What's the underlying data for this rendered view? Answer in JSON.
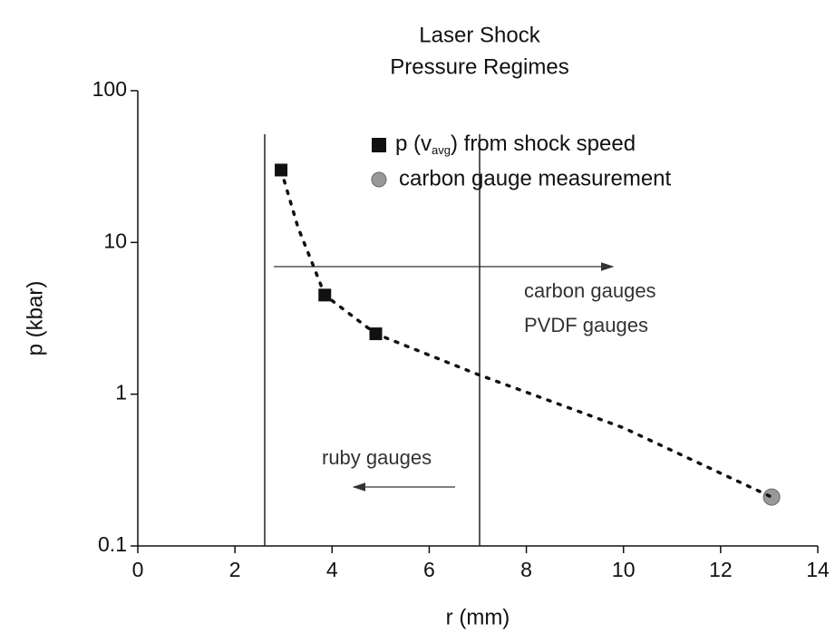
{
  "chart_data": {
    "type": "scatter",
    "title": [
      "Laser Shock",
      "Pressure Regimes"
    ],
    "xlabel": "r (mm)",
    "ylabel": "p (kbar)",
    "xlim": [
      0,
      14
    ],
    "xticks": [
      0,
      2,
      4,
      6,
      8,
      10,
      12,
      14
    ],
    "ylim": [
      0.1,
      100
    ],
    "yticks": [
      0.1,
      1,
      10,
      100
    ],
    "yscale": "log",
    "series": [
      {
        "name": [
          "p (v",
          "avg",
          ") from shock speed"
        ],
        "marker": "square",
        "color": "#111111",
        "x": [
          2.95,
          3.85,
          4.9
        ],
        "values": [
          30,
          4.5,
          2.5
        ]
      },
      {
        "name": "carbon gauge measurement",
        "marker": "circle",
        "color": "#999999",
        "x": [
          13.05
        ],
        "values": [
          0.21
        ]
      },
      {
        "marker": "dotted-line",
        "color": "#111111",
        "x": [
          2.95,
          3.3,
          3.6,
          3.85,
          4.9,
          7,
          10,
          13.05
        ],
        "values": [
          30,
          12.5,
          7.2,
          4.5,
          2.5,
          1.35,
          0.6,
          0.21
        ]
      }
    ],
    "annotations": [
      "carbon gauges",
      "PVDF gauges",
      "ruby gauges"
    ]
  }
}
